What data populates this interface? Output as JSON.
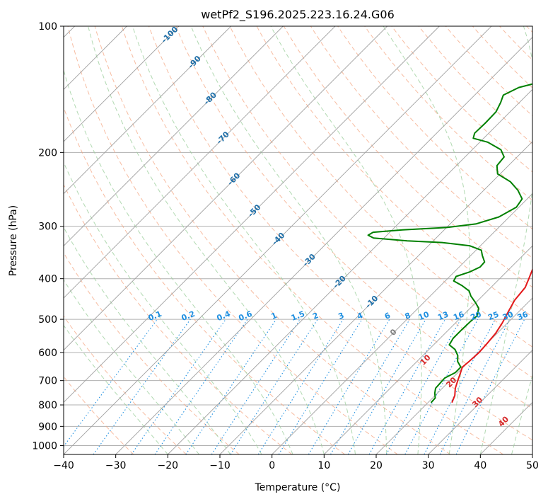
{
  "chart_data": {
    "type": "line",
    "diagram": "Skew-T log-P",
    "title": "wetPf2_S196.2025.223.16.24.G06",
    "xlabel": "Temperature (°C)",
    "ylabel": "Pressure (hPa)",
    "xlim": [
      -40,
      50
    ],
    "ylim": [
      1050,
      100
    ],
    "x_ticks": [
      -40,
      -30,
      -20,
      -10,
      0,
      10,
      20,
      30,
      40,
      50
    ],
    "x_tick_labels": [
      "−40",
      "−30",
      "−20",
      "−10",
      "0",
      "10",
      "20",
      "30",
      "40",
      "50"
    ],
    "y_ticks": [
      1000,
      900,
      800,
      700,
      600,
      500,
      400,
      300,
      200,
      100
    ],
    "y_tick_labels": [
      "1000",
      "900",
      "800",
      "700",
      "600",
      "500",
      "400",
      "300",
      "200",
      "100"
    ],
    "grid": true,
    "colors": {
      "temperature": "#e41a1c",
      "dewpoint": "#008000",
      "isotherm": "#a0a0a0",
      "dry_adiabat": "#f4a582",
      "moist_adiabat": "#9ecf9e",
      "mixing_ratio": "#1f8fe0",
      "iso_label": "#1f6fa8",
      "lcl_label": "#d62728",
      "zero_label": "#808080"
    },
    "series": [
      {
        "name": "Temperature",
        "values": [
          [
            24.6,
            790
          ],
          [
            23.8,
            760
          ],
          [
            22.5,
            730
          ],
          [
            21.5,
            700
          ],
          [
            20.5,
            670
          ],
          [
            19.8,
            650
          ],
          [
            20.0,
            630
          ],
          [
            20.2,
            600
          ],
          [
            20.0,
            570
          ],
          [
            19.7,
            540
          ],
          [
            19.0,
            510
          ],
          [
            18.0,
            480
          ],
          [
            17.0,
            450
          ],
          [
            16.6,
            420
          ],
          [
            15.6,
            400
          ],
          [
            14.8,
            385
          ],
          [
            13.7,
            365
          ],
          [
            13.0,
            345
          ],
          [
            11.8,
            320
          ],
          [
            10.6,
            300
          ],
          [
            8.7,
            280
          ],
          [
            6.7,
            260
          ],
          [
            4.9,
            240
          ],
          [
            3.0,
            220
          ],
          [
            1.6,
            205
          ],
          [
            1.6,
            195
          ],
          [
            1.8,
            180
          ],
          [
            2.0,
            165
          ],
          [
            1.8,
            150
          ],
          [
            1.5,
            140
          ],
          [
            1.6,
            130
          ],
          [
            2.0,
            123
          ],
          [
            2.5,
            115
          ],
          [
            3.0,
            108
          ],
          [
            3.4,
            100
          ]
        ]
      },
      {
        "name": "Dewpoint",
        "values": [
          [
            20.6,
            790
          ],
          [
            20.5,
            770
          ],
          [
            19.5,
            750
          ],
          [
            18.7,
            730
          ],
          [
            18.6,
            710
          ],
          [
            18.5,
            690
          ],
          [
            19.5,
            670
          ],
          [
            19.5,
            650
          ],
          [
            17.8,
            630
          ],
          [
            16.7,
            610
          ],
          [
            15.0,
            590
          ],
          [
            13.0,
            575
          ],
          [
            12.5,
            555
          ],
          [
            12.5,
            530
          ],
          [
            12.6,
            505
          ],
          [
            12.8,
            490
          ],
          [
            11.6,
            470
          ],
          [
            9.8,
            455
          ],
          [
            7.8,
            440
          ],
          [
            6.5,
            428
          ],
          [
            4.0,
            415
          ],
          [
            1.6,
            405
          ],
          [
            1.2,
            395
          ],
          [
            3.0,
            385
          ],
          [
            4.0,
            375
          ],
          [
            3.9,
            365
          ],
          [
            2.2,
            352
          ],
          [
            1.0,
            342
          ],
          [
            -2.0,
            334
          ],
          [
            -8.0,
            328
          ],
          [
            -15.0,
            325
          ],
          [
            -22.0,
            320
          ],
          [
            -23.6,
            315
          ],
          [
            -23.2,
            310
          ],
          [
            -18.0,
            306
          ],
          [
            -10.0,
            302
          ],
          [
            -5.0,
            296
          ],
          [
            -2.0,
            285
          ],
          [
            -0.5,
            270
          ],
          [
            -1.0,
            258
          ],
          [
            -3.5,
            246
          ],
          [
            -6.5,
            235
          ],
          [
            -10.5,
            225
          ],
          [
            -12.2,
            215
          ],
          [
            -12.5,
            205
          ],
          [
            -14.5,
            197
          ],
          [
            -18.5,
            189
          ],
          [
            -22.0,
            185
          ],
          [
            -22.7,
            180
          ],
          [
            -22.6,
            170
          ],
          [
            -22.7,
            160
          ],
          [
            -23.6,
            152
          ],
          [
            -24.5,
            146
          ],
          [
            -23.0,
            140
          ],
          [
            -20.0,
            136
          ],
          [
            -15.0,
            135
          ],
          [
            -10.5,
            132
          ],
          [
            -8.0,
            128
          ],
          [
            -5.0,
            120
          ],
          [
            -2.5,
            113
          ],
          [
            -0.5,
            107
          ],
          [
            1.5,
            100
          ]
        ]
      }
    ],
    "isotherm_labels": [
      "-100",
      "-90",
      "-80",
      "-70",
      "-60",
      "-50",
      "-40",
      "-30",
      "-20",
      "-10",
      "0"
    ],
    "isotherm_values": [
      -100,
      -90,
      -80,
      -70,
      -60,
      -50,
      -40,
      -30,
      -20,
      -10,
      0
    ],
    "mixing_ratio_labels": [
      "0.1",
      "0.2",
      "0.4",
      "0.6",
      "1",
      "1.5",
      "2",
      "3",
      "4",
      "6",
      "8",
      "10",
      "13",
      "16",
      "20",
      "25",
      "30",
      "36"
    ],
    "mixing_ratio_values": [
      0.1,
      0.2,
      0.4,
      0.6,
      1,
      1.5,
      2,
      3,
      4,
      6,
      8,
      10,
      13,
      16,
      20,
      25,
      30,
      36
    ],
    "moist_adiabat_labels": [
      "10",
      "20",
      "30",
      "40"
    ],
    "moist_adiabat_values": [
      10,
      20,
      30,
      40
    ]
  }
}
